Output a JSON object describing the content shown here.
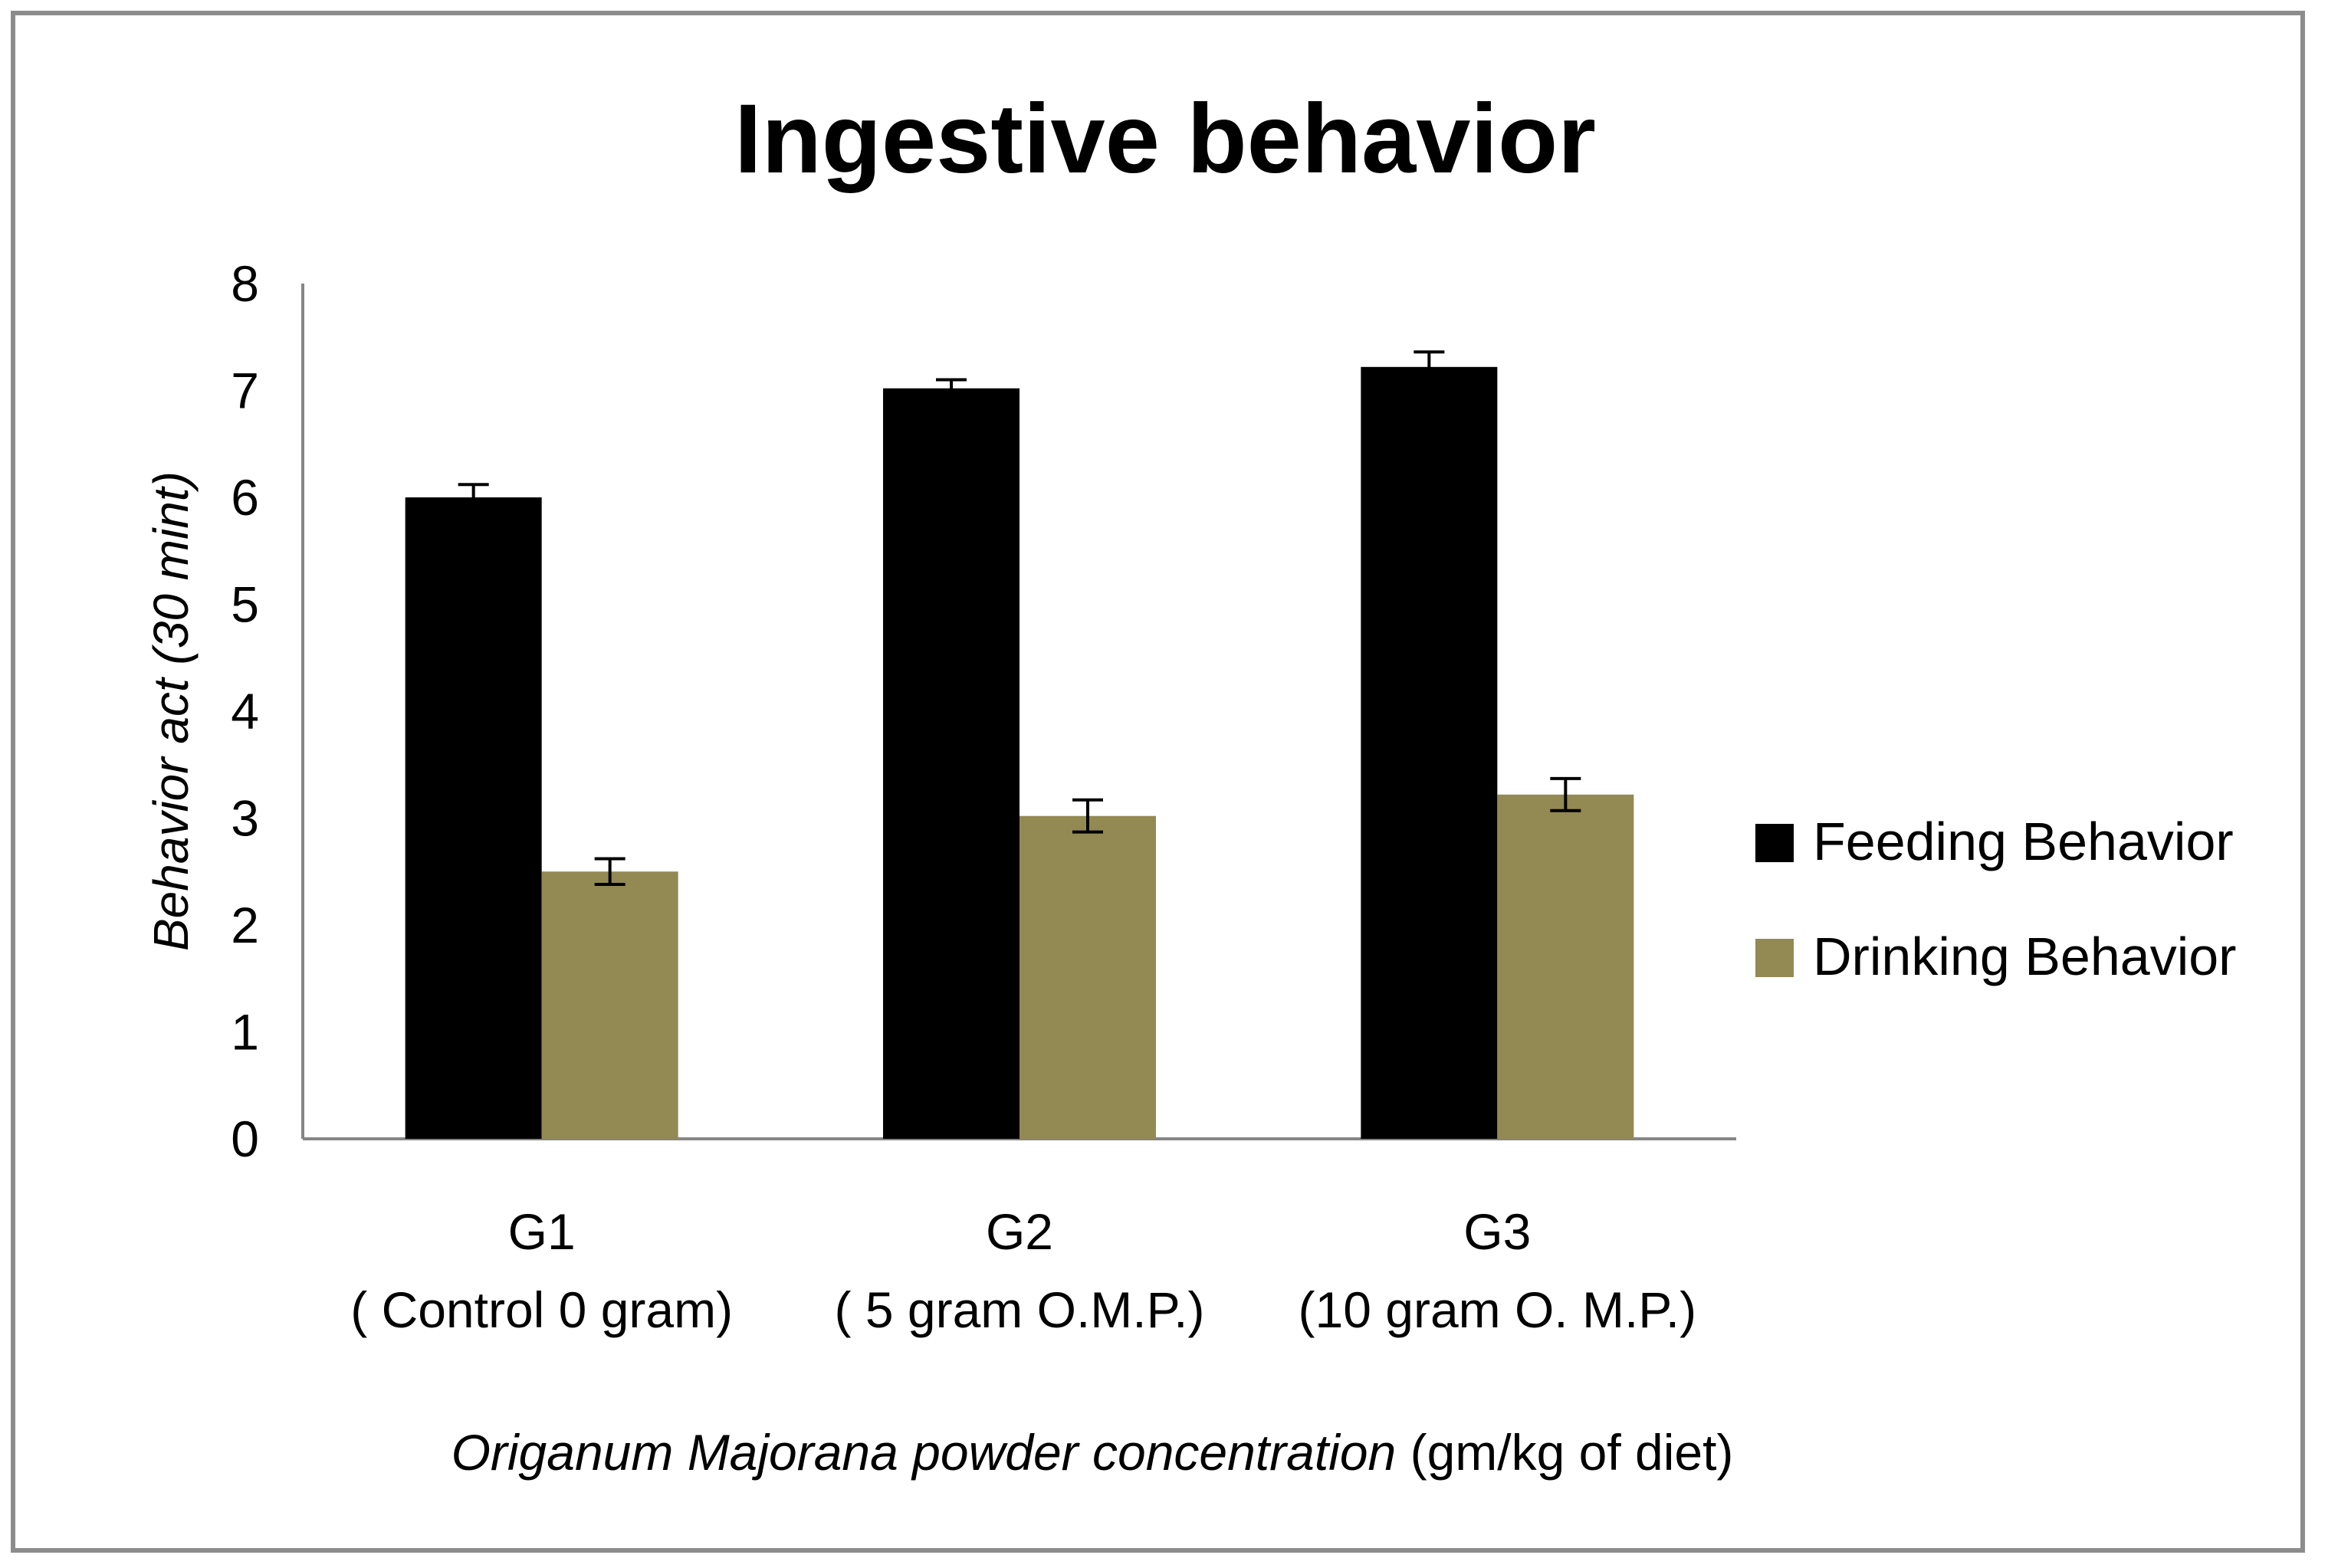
{
  "chart_data": {
    "type": "bar",
    "title": "Ingestive behavior",
    "ylabel": "Behavior act (30 mint)",
    "xlabel_italic": "Origanum Majorana  powder concentration",
    "xlabel_normal": " (gm/kg of diet)",
    "ylim": [
      0,
      8
    ],
    "yticks": [
      0,
      1,
      2,
      3,
      4,
      5,
      6,
      7,
      8
    ],
    "categories": [
      {
        "line1": "G1",
        "line2": "( Control  0 gram)"
      },
      {
        "line1": "G2",
        "line2": "( 5 gram O.M.P.)"
      },
      {
        "line1": "G3",
        "line2": "(10 gram O. M.P.)"
      }
    ],
    "series": [
      {
        "name": "Feeding Behavior",
        "color": "#000000",
        "values": [
          6.0,
          7.02,
          7.22
        ],
        "errors": [
          0.12,
          0.08,
          0.14
        ]
      },
      {
        "name": "Drinking Behavior",
        "color": "#938953",
        "values": [
          2.5,
          3.02,
          3.22
        ],
        "errors": [
          0.12,
          0.15,
          0.15
        ]
      }
    ],
    "grid": false,
    "legend_position": "right"
  }
}
